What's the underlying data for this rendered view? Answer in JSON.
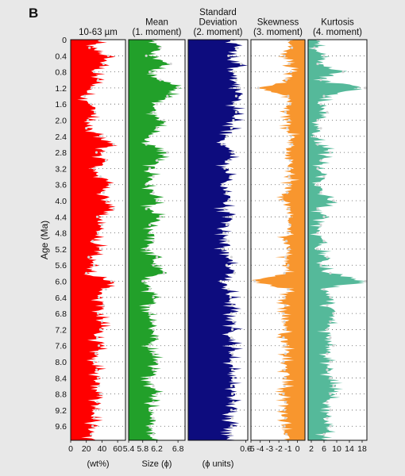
{
  "panel_letter": "B",
  "y_axis": {
    "label": "Age (Ma)",
    "ticks": [
      "0",
      "0.4",
      "0.8",
      "1.2",
      "1.6",
      "2.0",
      "2.4",
      "2.8",
      "3.2",
      "3.6",
      "4.0",
      "4.4",
      "4.8",
      "5.2",
      "5.6",
      "6.0",
      "6.4",
      "6.8",
      "7.2",
      "7.6",
      "8.0",
      "8.4",
      "8.8",
      "9.2",
      "9.6"
    ]
  },
  "chart_data": [
    {
      "type": "area",
      "id": "p10-63",
      "title_lines": [
        "10-63 µm"
      ],
      "xlabel": "(wt%)",
      "xticks": [
        "0",
        "20",
        "40",
        "60"
      ],
      "xlim": [
        0,
        70
      ],
      "color": "#ff0000",
      "series": [
        {
          "name": "10-63 µm",
          "age_ma": [
            0,
            0.2,
            0.4,
            0.6,
            0.8,
            1.0,
            1.2,
            1.4,
            1.6,
            1.8,
            2.0,
            2.2,
            2.4,
            2.6,
            2.8,
            3.0,
            3.2,
            3.4,
            3.6,
            3.8,
            4.0,
            4.2,
            4.4,
            4.6,
            4.8,
            5.0,
            5.2,
            5.4,
            5.6,
            5.8,
            6.0,
            6.2,
            6.4,
            6.6,
            6.8,
            7.0,
            7.2,
            7.4,
            7.6,
            7.8,
            8.0,
            8.2,
            8.4,
            8.6,
            8.8,
            9.0,
            9.2,
            9.4,
            9.6,
            9.8
          ],
          "values": [
            38,
            24,
            48,
            42,
            30,
            35,
            27,
            18,
            26,
            31,
            22,
            20,
            38,
            55,
            33,
            45,
            30,
            38,
            50,
            42,
            46,
            55,
            34,
            40,
            35,
            28,
            40,
            23,
            30,
            20,
            52,
            45,
            36,
            42,
            35,
            40,
            38,
            34,
            36,
            32,
            30,
            33,
            35,
            36,
            38,
            34,
            32,
            30,
            28,
            26
          ]
        }
      ]
    },
    {
      "type": "area",
      "id": "mean",
      "title_lines": [
        "Mean",
        "(1. moment)"
      ],
      "xlabel": "Size (ϕ)",
      "xticks": [
        "5.4",
        "5.8",
        "6.2",
        "6.8"
      ],
      "xlim": [
        5.4,
        7.0
      ],
      "color": "#22a02a",
      "series": [
        {
          "name": "Mean",
          "age_ma": [
            0,
            0.2,
            0.4,
            0.6,
            0.8,
            1.0,
            1.2,
            1.4,
            1.6,
            1.8,
            2.0,
            2.2,
            2.4,
            2.6,
            2.8,
            3.0,
            3.2,
            3.4,
            3.6,
            3.8,
            4.0,
            4.2,
            4.4,
            4.6,
            4.8,
            5.0,
            5.2,
            5.4,
            5.6,
            5.8,
            6.0,
            6.2,
            6.4,
            6.6,
            6.8,
            7.0,
            7.2,
            7.4,
            7.6,
            7.8,
            8.0,
            8.2,
            8.4,
            8.6,
            8.8,
            9.0,
            9.2,
            9.4,
            9.6,
            9.8
          ],
          "values": [
            6.1,
            6.3,
            5.9,
            6.6,
            6.0,
            6.3,
            6.8,
            6.5,
            6.2,
            6.1,
            6.4,
            6.2,
            6.0,
            5.9,
            6.5,
            6.2,
            6.0,
            6.1,
            5.9,
            6.1,
            6.2,
            5.9,
            6.3,
            6.0,
            6.0,
            6.1,
            5.9,
            6.2,
            6.1,
            6.4,
            5.8,
            6.0,
            6.1,
            6.0,
            6.0,
            6.1,
            6.1,
            6.2,
            6.0,
            6.1,
            6.2,
            6.1,
            6.0,
            6.1,
            6.2,
            6.1,
            6.0,
            6.1,
            6.0,
            6.1
          ]
        }
      ]
    },
    {
      "type": "area",
      "id": "std",
      "title_lines": [
        "Standard",
        "Deviation",
        "(2. moment)"
      ],
      "xlabel": "(ϕ units)",
      "xticks": [
        "0.6"
      ],
      "xlim": [
        0,
        0.62
      ],
      "color": "#0d0c7e",
      "series": [
        {
          "name": "Standard Deviation",
          "age_ma": [
            0,
            0.2,
            0.4,
            0.6,
            0.8,
            1.0,
            1.2,
            1.4,
            1.6,
            1.8,
            2.0,
            2.2,
            2.4,
            2.6,
            2.8,
            3.0,
            3.2,
            3.4,
            3.6,
            3.8,
            4.0,
            4.2,
            4.4,
            4.6,
            4.8,
            5.0,
            5.2,
            5.4,
            5.6,
            5.8,
            6.0,
            6.2,
            6.4,
            6.6,
            6.8,
            7.0,
            7.2,
            7.4,
            7.6,
            7.8,
            8.0,
            8.2,
            8.4,
            8.6,
            8.8,
            9.0,
            9.2,
            9.4,
            9.6,
            9.8
          ],
          "values": [
            0.45,
            0.5,
            0.42,
            0.55,
            0.48,
            0.5,
            0.52,
            0.5,
            0.48,
            0.5,
            0.47,
            0.45,
            0.4,
            0.35,
            0.46,
            0.42,
            0.38,
            0.44,
            0.36,
            0.4,
            0.42,
            0.38,
            0.44,
            0.4,
            0.37,
            0.42,
            0.36,
            0.45,
            0.4,
            0.48,
            0.34,
            0.42,
            0.44,
            0.46,
            0.45,
            0.47,
            0.46,
            0.45,
            0.47,
            0.46,
            0.45,
            0.46,
            0.47,
            0.45,
            0.46,
            0.47,
            0.45,
            0.46,
            0.45,
            0.44
          ]
        }
      ]
    },
    {
      "type": "area",
      "id": "skew",
      "title_lines": [
        "Skewness",
        "(3. moment)"
      ],
      "xlabel": "",
      "xticks": [
        "-5",
        "-4",
        "-3",
        "-2",
        "-1",
        "0"
      ],
      "xlim": [
        -5,
        0.8
      ],
      "reverse_fill": true,
      "color": "#f8962e",
      "series": [
        {
          "name": "Skewness",
          "age_ma": [
            0,
            0.2,
            0.4,
            0.6,
            0.8,
            1.0,
            1.2,
            1.4,
            1.6,
            1.8,
            2.0,
            2.2,
            2.4,
            2.6,
            2.8,
            3.0,
            3.2,
            3.4,
            3.6,
            3.8,
            4.0,
            4.2,
            4.4,
            4.6,
            4.8,
            5.0,
            5.2,
            5.4,
            5.6,
            5.8,
            6.0,
            6.2,
            6.4,
            6.6,
            6.8,
            7.0,
            7.2,
            7.4,
            7.6,
            7.8,
            8.0,
            8.2,
            8.4,
            8.6,
            8.8,
            9.0,
            9.2,
            9.4,
            9.6,
            9.8
          ],
          "values": [
            -1.0,
            -0.6,
            -1.4,
            -0.9,
            -0.7,
            -1.2,
            -4.2,
            -1.0,
            -0.8,
            -1.3,
            -0.9,
            -1.1,
            -0.7,
            -0.6,
            -1.5,
            -0.8,
            -1.0,
            -0.9,
            -0.8,
            -1.1,
            -1.6,
            -0.9,
            -1.2,
            -0.8,
            -1.0,
            -1.2,
            -0.9,
            -1.3,
            -1.0,
            -1.4,
            -4.6,
            -1.0,
            -1.4,
            -1.3,
            -1.5,
            -1.4,
            -1.3,
            -1.5,
            -1.4,
            -1.3,
            -1.5,
            -1.4,
            -1.3,
            -1.4,
            -1.5,
            -1.3,
            -1.4,
            -1.3,
            -1.4,
            -1.2
          ]
        }
      ]
    },
    {
      "type": "area",
      "id": "kurt",
      "title_lines": [
        "Kurtosis",
        "(4. moment)"
      ],
      "xlabel": "",
      "xticks": [
        "2",
        "6",
        "10",
        "14",
        "18"
      ],
      "xlim": [
        1,
        19.5
      ],
      "color": "#55b99a",
      "series": [
        {
          "name": "Kurtosis",
          "age_ma": [
            0,
            0.2,
            0.4,
            0.6,
            0.8,
            1.0,
            1.2,
            1.4,
            1.6,
            1.8,
            2.0,
            2.2,
            2.4,
            2.6,
            2.8,
            3.0,
            3.2,
            3.4,
            3.6,
            3.8,
            4.0,
            4.2,
            4.4,
            4.6,
            4.8,
            5.0,
            5.2,
            5.4,
            5.6,
            5.8,
            6.0,
            6.2,
            6.4,
            6.6,
            6.8,
            7.0,
            7.2,
            7.4,
            7.6,
            7.8,
            8.0,
            8.2,
            8.4,
            8.6,
            8.8,
            9.0,
            9.2,
            9.4,
            9.6,
            9.8
          ],
          "values": [
            4,
            3,
            6,
            4,
            12,
            5,
            19,
            6,
            5,
            7,
            4,
            5,
            3,
            4,
            8,
            5,
            4,
            6,
            4,
            5,
            9,
            4,
            6,
            5,
            4,
            6,
            4,
            7,
            5,
            8,
            19,
            6,
            8,
            7,
            9,
            8,
            7,
            8,
            9,
            7,
            8,
            7,
            8,
            9,
            8,
            7,
            8,
            7,
            8,
            6
          ]
        }
      ]
    }
  ]
}
